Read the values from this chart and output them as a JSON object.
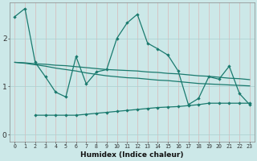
{
  "xlabel": "Humidex (Indice chaleur)",
  "background_color": "#cce8e8",
  "grid_color": "#aacfcf",
  "line_color": "#1a7a6e",
  "x_ticks": [
    0,
    1,
    2,
    3,
    4,
    5,
    6,
    7,
    8,
    9,
    10,
    11,
    12,
    13,
    14,
    15,
    16,
    17,
    18,
    19,
    20,
    21,
    22,
    23
  ],
  "y_ticks": [
    0,
    1,
    2
  ],
  "ylim": [
    -0.15,
    2.75
  ],
  "xlim": [
    -0.5,
    23.5
  ],
  "series": [
    [
      2.45,
      2.62,
      1.5,
      1.2,
      0.88,
      0.78,
      1.62,
      1.05,
      1.3,
      1.35,
      2.0,
      2.32,
      2.5,
      1.9,
      1.78,
      1.65,
      1.32,
      0.62,
      0.75,
      1.2,
      1.15,
      1.42,
      0.85,
      0.62
    ],
    [
      1.5,
      1.48,
      1.45,
      1.42,
      1.38,
      1.35,
      1.32,
      1.28,
      1.25,
      1.22,
      1.2,
      1.18,
      1.17,
      1.15,
      1.13,
      1.12,
      1.1,
      1.08,
      1.06,
      1.05,
      1.04,
      1.03,
      1.02,
      1.01
    ],
    [
      1.5,
      1.49,
      1.47,
      1.46,
      1.44,
      1.43,
      1.41,
      1.39,
      1.37,
      1.35,
      1.34,
      1.33,
      1.32,
      1.3,
      1.29,
      1.27,
      1.26,
      1.24,
      1.22,
      1.21,
      1.19,
      1.17,
      1.16,
      1.14
    ],
    [
      null,
      null,
      0.4,
      0.4,
      0.4,
      0.4,
      0.4,
      0.42,
      0.44,
      0.46,
      0.48,
      0.5,
      0.52,
      0.54,
      0.56,
      0.57,
      0.58,
      0.6,
      0.62,
      0.65,
      0.65,
      0.65,
      0.65,
      0.65
    ]
  ]
}
